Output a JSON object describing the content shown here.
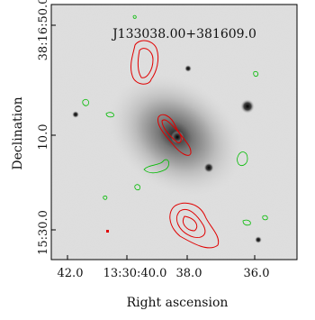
{
  "figure": {
    "title": "J133038.00+381609.0",
    "x_label": "Right ascension",
    "y_label": "Declination",
    "x_ticks": [
      "42.0",
      "13:30:40.0",
      "38.0",
      "36.0"
    ],
    "y_ticks": [
      "38:16:50.0",
      "10.0",
      "15:30.0"
    ]
  }
}
